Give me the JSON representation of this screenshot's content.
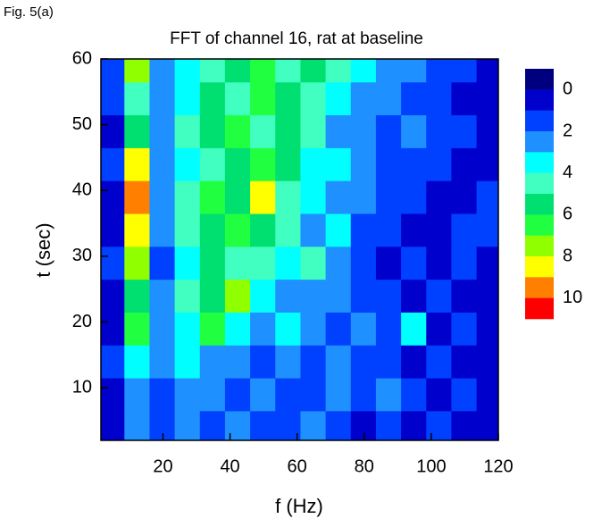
{
  "chart_data": {
    "type": "heatmap",
    "figure_label": "Fig. 5(a)",
    "title": "FFT of channel 16, rat at baseline",
    "xlabel": "f (Hz)",
    "ylabel": "t (sec)",
    "x": [
      5,
      12,
      20,
      27,
      35,
      42,
      50,
      57,
      65,
      72,
      80,
      87,
      95,
      102,
      110,
      117
    ],
    "y": [
      4,
      9,
      14,
      19,
      24,
      29,
      34,
      39,
      44,
      49,
      54,
      59
    ],
    "z": [
      [
        0,
        2,
        1,
        2,
        1,
        2,
        1,
        1,
        2,
        1,
        0,
        1,
        0,
        1,
        0,
        0
      ],
      [
        0,
        2,
        1,
        2,
        2,
        1,
        2,
        1,
        1,
        2,
        1,
        2,
        1,
        0,
        1,
        0
      ],
      [
        1,
        3,
        2,
        3,
        2,
        2,
        1,
        2,
        1,
        2,
        1,
        1,
        0,
        1,
        0,
        0
      ],
      [
        0,
        6,
        2,
        3,
        6,
        3,
        2,
        3,
        2,
        1,
        2,
        1,
        3,
        0,
        1,
        0
      ],
      [
        0,
        5,
        2,
        4,
        5,
        7,
        3,
        2,
        2,
        2,
        1,
        1,
        0,
        1,
        0,
        0
      ],
      [
        1,
        7,
        1,
        3,
        5,
        4,
        4,
        3,
        4,
        2,
        1,
        0,
        1,
        0,
        1,
        0
      ],
      [
        0,
        8,
        2,
        4,
        5,
        6,
        5,
        4,
        2,
        3,
        1,
        1,
        0,
        0,
        1,
        1
      ],
      [
        0,
        9,
        2,
        4,
        6,
        5,
        8,
        4,
        3,
        2,
        2,
        1,
        1,
        0,
        0,
        1
      ],
      [
        1,
        8,
        2,
        3,
        4,
        5,
        6,
        5,
        3,
        3,
        2,
        1,
        1,
        1,
        0,
        0
      ],
      [
        0,
        5,
        2,
        4,
        5,
        6,
        4,
        5,
        4,
        2,
        2,
        1,
        2,
        1,
        1,
        0
      ],
      [
        1,
        4,
        2,
        3,
        5,
        4,
        6,
        5,
        4,
        3,
        2,
        2,
        1,
        1,
        0,
        0
      ],
      [
        1,
        7,
        2,
        3,
        4,
        5,
        6,
        4,
        5,
        4,
        3,
        2,
        2,
        1,
        1,
        0
      ]
    ],
    "xlim": [
      1.5,
      120
    ],
    "xticks": [
      20,
      40,
      60,
      80,
      100,
      120
    ],
    "ylim": [
      2,
      60
    ],
    "yticks": [
      10,
      20,
      30,
      40,
      50,
      60
    ],
    "levels": [
      -1,
      0,
      1,
      2,
      3,
      4,
      5,
      6,
      7,
      8,
      9,
      10,
      11
    ],
    "colors": [
      "#00007f",
      "#0000cc",
      "#0040ff",
      "#1e90ff",
      "#00ffff",
      "#40ffc0",
      "#00e070",
      "#20ff40",
      "#90ff00",
      "#ffff00",
      "#ff8000",
      "#ff0000",
      "#7f0000"
    ],
    "zlim": [
      -1,
      11
    ],
    "zticks": [
      0,
      2,
      4,
      6,
      8,
      10
    ]
  }
}
